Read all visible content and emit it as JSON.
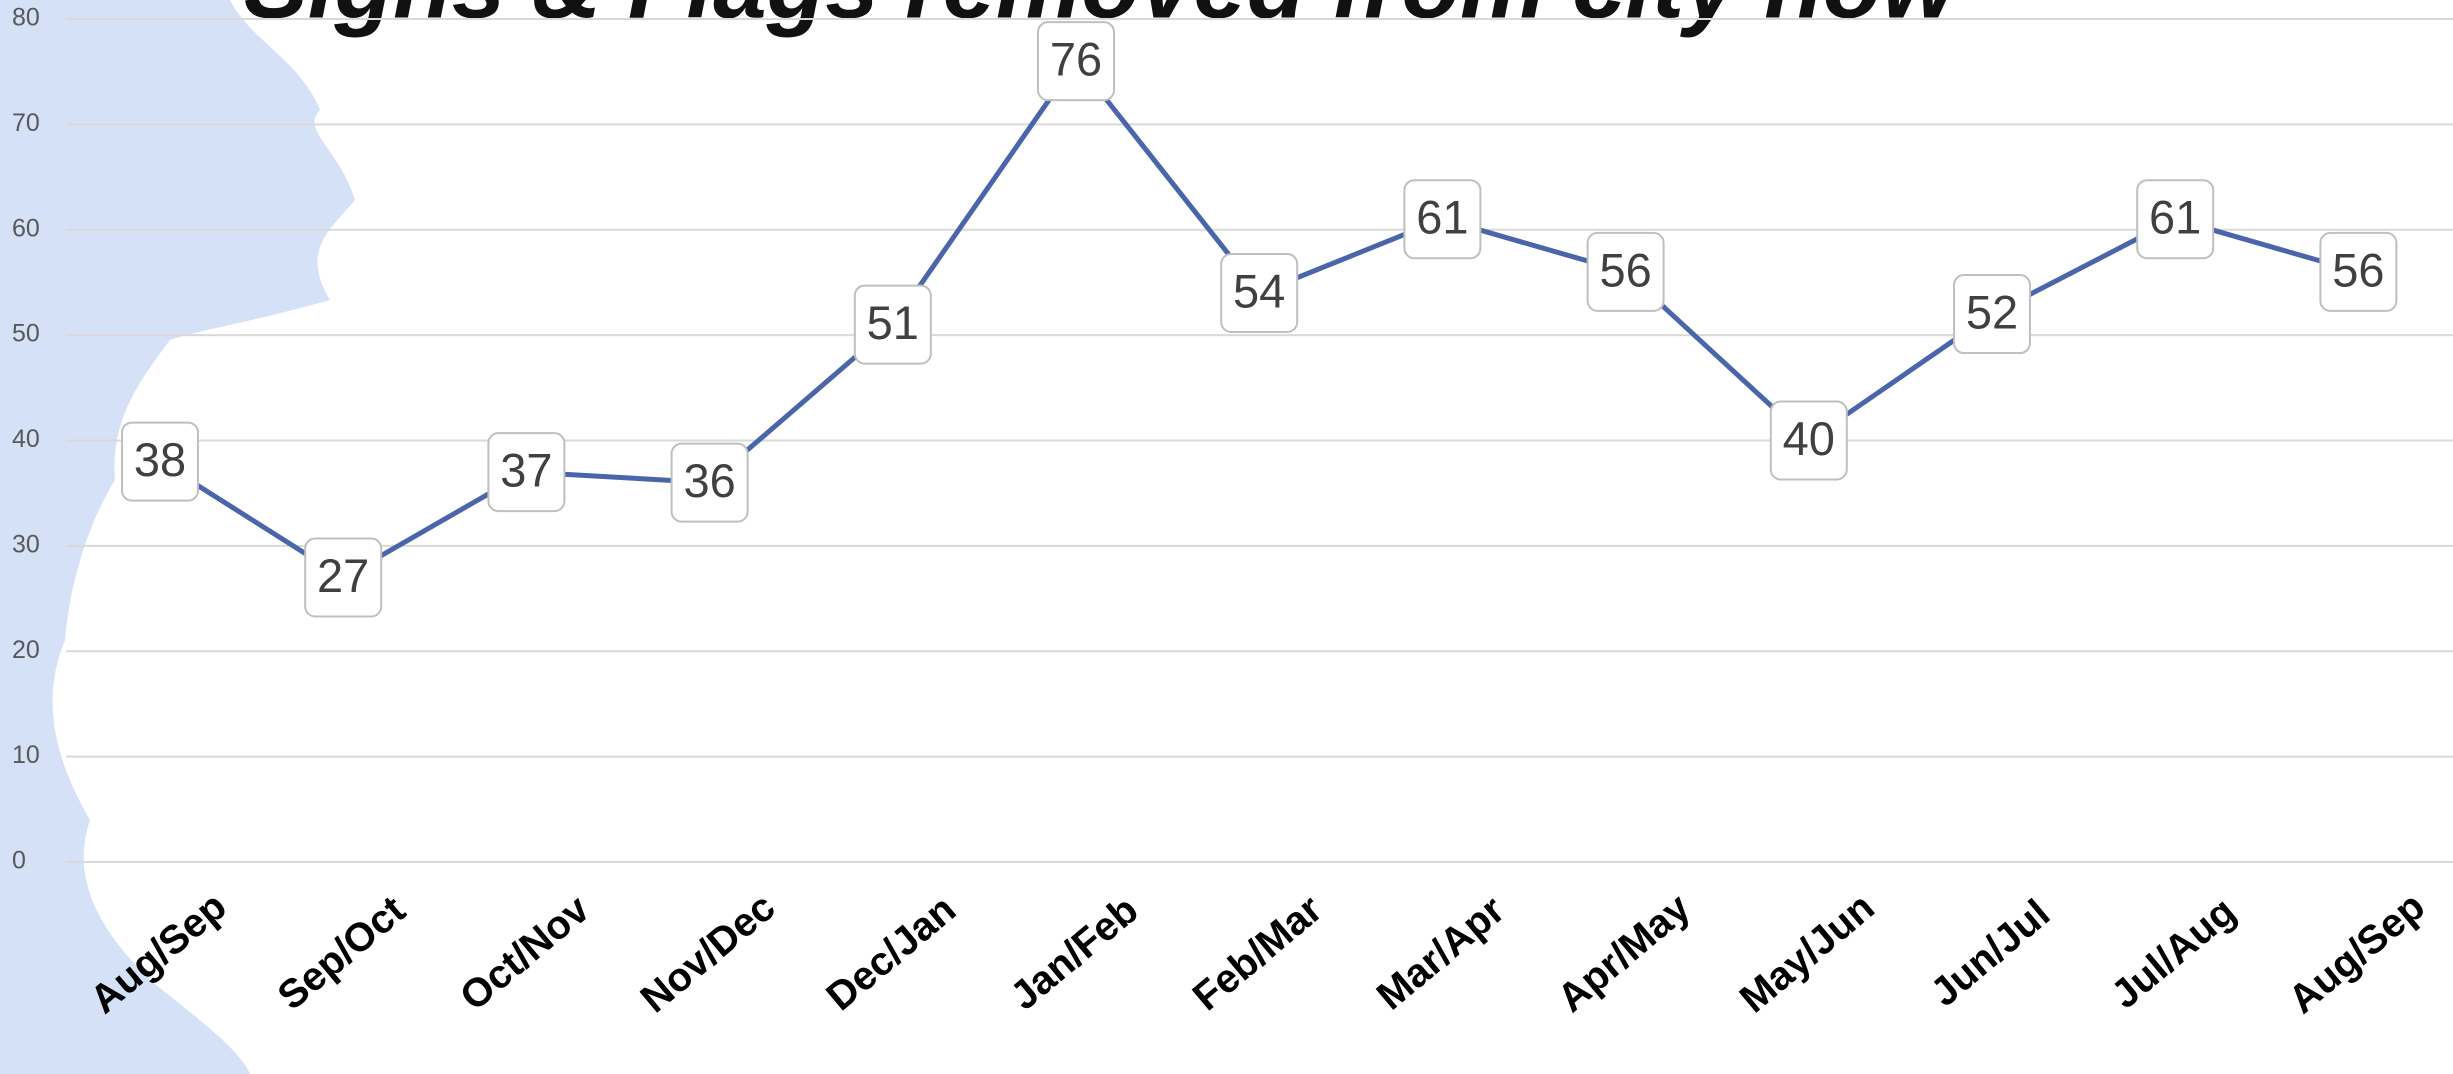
{
  "chart_data": {
    "type": "line",
    "title": "Signs & Flags removed from city now",
    "categories": [
      "Aug/Sep",
      "Sep/Oct",
      "Oct/Nov",
      "Nov/Dec",
      "Dec/Jan",
      "Jan/Feb",
      "Feb/Mar",
      "Mar/Apr",
      "Apr/May",
      "May/Jun",
      "Jun/Jul",
      "Jul/Aug",
      "Aug/Sep"
    ],
    "values": [
      38,
      27,
      37,
      36,
      51,
      76,
      54,
      61,
      56,
      40,
      52,
      61,
      56
    ],
    "color": "#4a65aa",
    "ylim": [
      0,
      80
    ],
    "yticks": [
      0,
      10,
      20,
      30,
      40,
      50,
      60,
      70,
      80
    ],
    "grid": true
  }
}
